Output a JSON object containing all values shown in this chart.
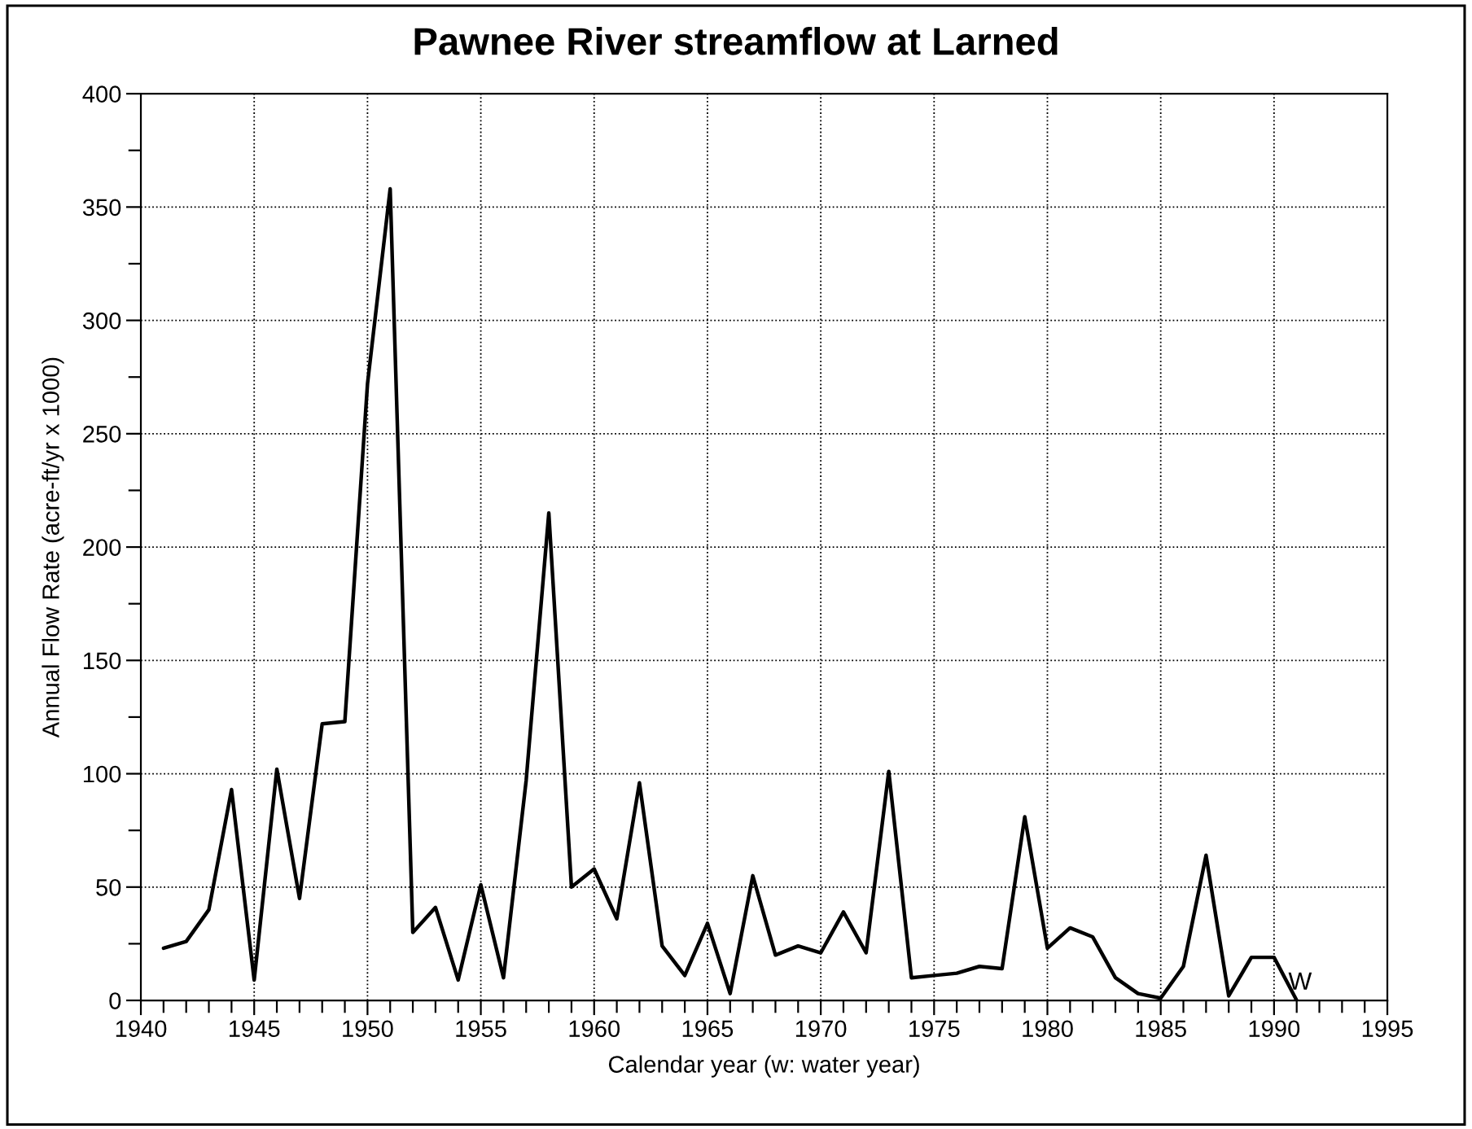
{
  "chart_data": {
    "type": "line",
    "title": "Pawnee River streamflow at Larned",
    "xlabel": "Calendar year (w: water year)",
    "ylabel": "Annual Flow Rate (acre-ft/yr x 1000)",
    "x": [
      1941,
      1942,
      1943,
      1944,
      1945,
      1946,
      1947,
      1948,
      1949,
      1950,
      1951,
      1952,
      1953,
      1954,
      1955,
      1956,
      1957,
      1958,
      1959,
      1960,
      1961,
      1962,
      1963,
      1964,
      1965,
      1966,
      1967,
      1968,
      1969,
      1970,
      1971,
      1972,
      1973,
      1974,
      1975,
      1976,
      1977,
      1978,
      1979,
      1980,
      1981,
      1982,
      1983,
      1984,
      1985,
      1986,
      1987,
      1988,
      1989,
      1990,
      1991
    ],
    "series": [
      {
        "color": "#000000",
        "values": [
          23,
          26,
          40,
          93,
          9,
          102,
          45,
          122,
          123,
          272,
          358,
          30,
          41,
          9,
          51,
          10,
          97,
          215,
          50,
          58,
          36,
          96,
          24,
          11,
          34,
          3,
          55,
          20,
          24,
          21,
          39,
          21,
          101,
          10,
          11,
          12,
          15,
          14,
          81,
          23,
          32,
          28,
          10,
          3,
          1,
          15,
          64,
          2,
          19,
          19,
          0
        ]
      }
    ],
    "xlim": [
      1940,
      1995
    ],
    "ylim": [
      0,
      400
    ],
    "xticks": [
      1940,
      {
        "value": 1941,
        "label": null
      },
      {
        "value": 1942,
        "label": null
      },
      {
        "value": 1943,
        "label": null
      },
      {
        "value": 1944,
        "label": null
      },
      1945,
      {
        "value": 1946,
        "label": null
      },
      {
        "value": 1947,
        "label": null
      },
      {
        "value": 1948,
        "label": null
      },
      {
        "value": 1949,
        "label": null
      },
      1950,
      {
        "value": 1951,
        "label": null
      },
      {
        "value": 1952,
        "label": null
      },
      {
        "value": 1953,
        "label": null
      },
      {
        "value": 1954,
        "label": null
      },
      1955,
      {
        "value": 1956,
        "label": null
      },
      {
        "value": 1957,
        "label": null
      },
      {
        "value": 1958,
        "label": null
      },
      {
        "value": 1959,
        "label": null
      },
      1960,
      {
        "value": 1961,
        "label": null
      },
      {
        "value": 1962,
        "label": null
      },
      {
        "value": 1963,
        "label": null
      },
      {
        "value": 1964,
        "label": null
      },
      1965,
      {
        "value": 1966,
        "label": null
      },
      {
        "value": 1967,
        "label": null
      },
      {
        "value": 1968,
        "label": null
      },
      {
        "value": 1969,
        "label": null
      },
      1970,
      {
        "value": 1971,
        "label": null
      },
      {
        "value": 1972,
        "label": null
      },
      {
        "value": 1973,
        "label": null
      },
      {
        "value": 1974,
        "label": null
      },
      1975,
      {
        "value": 1976,
        "label": null
      },
      {
        "value": 1977,
        "label": null
      },
      {
        "value": 1978,
        "label": null
      },
      {
        "value": 1979,
        "label": null
      },
      1980,
      {
        "value": 1981,
        "label": null
      },
      {
        "value": 1982,
        "label": null
      },
      {
        "value": 1983,
        "label": null
      },
      {
        "value": 1984,
        "label": null
      },
      1985,
      {
        "value": 1986,
        "label": null
      },
      {
        "value": 1987,
        "label": null
      },
      {
        "value": 1988,
        "label": null
      },
      {
        "value": 1989,
        "label": null
      },
      1990,
      {
        "value": 1991,
        "label": null
      },
      {
        "value": 1992,
        "label": null
      },
      {
        "value": 1993,
        "label": null
      },
      {
        "value": 1994,
        "label": null
      },
      1995
    ],
    "yticks": [
      0,
      {
        "value": 25,
        "label": null
      },
      50,
      {
        "value": 75,
        "label": null
      },
      100,
      {
        "value": 125,
        "label": null
      },
      150,
      {
        "value": 175,
        "label": null
      },
      200,
      {
        "value": 225,
        "label": null
      },
      250,
      {
        "value": 275,
        "label": null
      },
      300,
      {
        "value": 325,
        "label": null
      },
      350,
      {
        "value": 375,
        "label": null
      },
      400
    ],
    "grid": true,
    "line_style": "solid",
    "annotations": [
      {
        "text": "W",
        "x": 1991,
        "y": 0
      }
    ]
  }
}
